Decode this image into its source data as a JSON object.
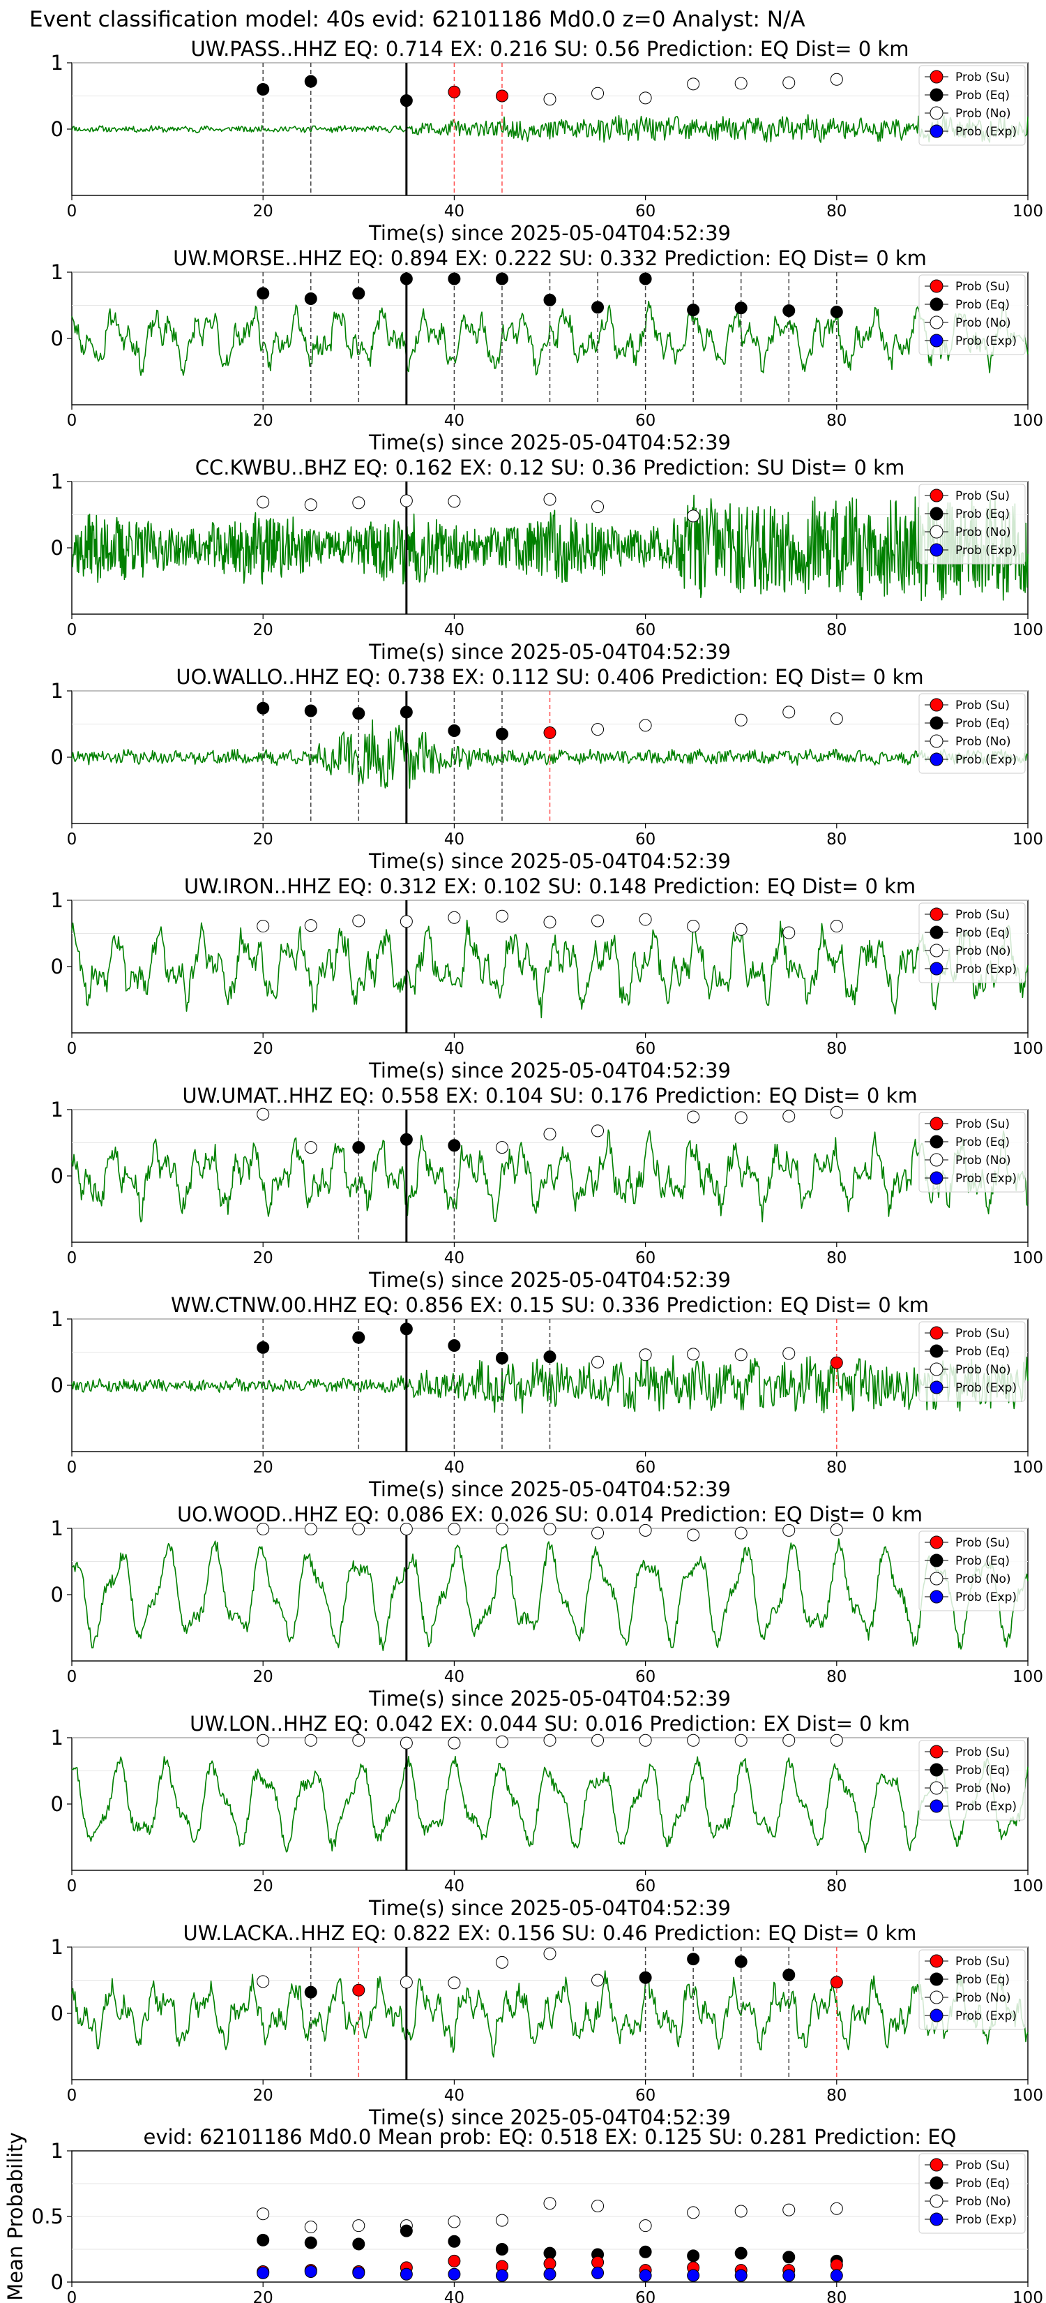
{
  "figure": {
    "suptitle": "Event classification model: 40s evid: 62101186 Md0.0 z=0 Analyst: N/A"
  },
  "legend_labels": [
    "Prob (Su)",
    "Prob (Eq)",
    "Prob (No)",
    "Prob (Exp)"
  ],
  "colors": {
    "waveform": "#008000",
    "su": "#ff0000",
    "eq": "#000000",
    "no": "#ffffff",
    "exp": "#0000ff",
    "origin_line": "#000000",
    "eq_marker_line": "#444444",
    "su_marker_line": "#ff5050"
  },
  "chart_data": [
    {
      "type": "line",
      "title": "UW.PASS..HHZ   EQ: 0.714   EX: 0.216   SU: 0.56    Prediction: EQ    Dist= 0 km",
      "xlabel": "Time(s) since 2025-05-04T04:52:39",
      "xlim": [
        0,
        100
      ],
      "ylim": [
        -1,
        1
      ],
      "x_ticks": [
        0,
        20,
        40,
        60,
        80,
        100
      ],
      "y_ticks": [
        0,
        1
      ],
      "waveform_style": "growing",
      "waveform_amp": 0.22,
      "waveform_seed": 11,
      "origin_time": 35,
      "probabilities": [
        {
          "x": 20,
          "y": 0.6,
          "class": "eq"
        },
        {
          "x": 25,
          "y": 0.72,
          "class": "eq"
        },
        {
          "x": 35,
          "y": 0.43,
          "class": "eq"
        },
        {
          "x": 40,
          "y": 0.56,
          "class": "su"
        },
        {
          "x": 45,
          "y": 0.5,
          "class": "su"
        },
        {
          "x": 50,
          "y": 0.45,
          "class": "no"
        },
        {
          "x": 55,
          "y": 0.54,
          "class": "no"
        },
        {
          "x": 60,
          "y": 0.47,
          "class": "no"
        },
        {
          "x": 65,
          "y": 0.68,
          "class": "no"
        },
        {
          "x": 70,
          "y": 0.69,
          "class": "no"
        },
        {
          "x": 75,
          "y": 0.7,
          "class": "no"
        },
        {
          "x": 80,
          "y": 0.75,
          "class": "no"
        }
      ]
    },
    {
      "type": "line",
      "title": "UW.MORSE..HHZ   EQ: 0.894   EX: 0.222   SU: 0.332    Prediction: EQ    Dist= 0 km",
      "xlabel": "Time(s) since 2025-05-04T04:52:39",
      "xlim": [
        0,
        100
      ],
      "ylim": [
        -1,
        1
      ],
      "x_ticks": [
        0,
        20,
        40,
        60,
        80,
        100
      ],
      "y_ticks": [
        0,
        1
      ],
      "waveform_style": "oscillating",
      "waveform_amp": 0.55,
      "waveform_seed": 23,
      "origin_time": 35,
      "probabilities": [
        {
          "x": 20,
          "y": 0.68,
          "class": "eq"
        },
        {
          "x": 25,
          "y": 0.6,
          "class": "eq"
        },
        {
          "x": 30,
          "y": 0.68,
          "class": "eq"
        },
        {
          "x": 35,
          "y": 0.9,
          "class": "eq"
        },
        {
          "x": 40,
          "y": 0.9,
          "class": "eq"
        },
        {
          "x": 45,
          "y": 0.9,
          "class": "eq"
        },
        {
          "x": 50,
          "y": 0.58,
          "class": "eq"
        },
        {
          "x": 55,
          "y": 0.47,
          "class": "eq"
        },
        {
          "x": 60,
          "y": 0.9,
          "class": "eq"
        },
        {
          "x": 65,
          "y": 0.43,
          "class": "eq"
        },
        {
          "x": 70,
          "y": 0.46,
          "class": "eq"
        },
        {
          "x": 75,
          "y": 0.42,
          "class": "eq"
        },
        {
          "x": 80,
          "y": 0.4,
          "class": "eq"
        }
      ]
    },
    {
      "type": "line",
      "title": "CC.KWBU..BHZ   EQ: 0.162   EX: 0.12   SU: 0.36    Prediction: SU    Dist= 0 km",
      "xlabel": "Time(s) since 2025-05-04T04:52:39",
      "xlim": [
        0,
        100
      ],
      "ylim": [
        -1,
        1
      ],
      "x_ticks": [
        0,
        20,
        40,
        60,
        80,
        100
      ],
      "y_ticks": [
        0,
        1
      ],
      "waveform_style": "dense",
      "waveform_amp": 0.6,
      "waveform_seed": 37,
      "origin_time": 35,
      "probabilities": [
        {
          "x": 20,
          "y": 0.69,
          "class": "no"
        },
        {
          "x": 25,
          "y": 0.65,
          "class": "no"
        },
        {
          "x": 30,
          "y": 0.68,
          "class": "no"
        },
        {
          "x": 35,
          "y": 0.71,
          "class": "no"
        },
        {
          "x": 40,
          "y": 0.7,
          "class": "no"
        },
        {
          "x": 50,
          "y": 0.73,
          "class": "no"
        },
        {
          "x": 55,
          "y": 0.62,
          "class": "no"
        },
        {
          "x": 65,
          "y": 0.48,
          "class": "no"
        }
      ]
    },
    {
      "type": "line",
      "title": "UO.WALLO..HHZ   EQ: 0.738   EX: 0.112   SU: 0.406    Prediction: EQ    Dist= 0 km",
      "xlabel": "Time(s) since 2025-05-04T04:52:39",
      "xlim": [
        0,
        100
      ],
      "ylim": [
        -1,
        1
      ],
      "x_ticks": [
        0,
        20,
        40,
        60,
        80,
        100
      ],
      "y_ticks": [
        0,
        1
      ],
      "waveform_style": "burst",
      "waveform_amp": 0.35,
      "waveform_seed": 41,
      "origin_time": 35,
      "probabilities": [
        {
          "x": 20,
          "y": 0.74,
          "class": "eq"
        },
        {
          "x": 25,
          "y": 0.7,
          "class": "eq"
        },
        {
          "x": 30,
          "y": 0.66,
          "class": "eq"
        },
        {
          "x": 35,
          "y": 0.68,
          "class": "eq"
        },
        {
          "x": 40,
          "y": 0.4,
          "class": "eq"
        },
        {
          "x": 45,
          "y": 0.35,
          "class": "eq"
        },
        {
          "x": 50,
          "y": 0.37,
          "class": "su"
        },
        {
          "x": 55,
          "y": 0.42,
          "class": "no"
        },
        {
          "x": 60,
          "y": 0.48,
          "class": "no"
        },
        {
          "x": 70,
          "y": 0.56,
          "class": "no"
        },
        {
          "x": 75,
          "y": 0.68,
          "class": "no"
        },
        {
          "x": 80,
          "y": 0.58,
          "class": "no"
        }
      ]
    },
    {
      "type": "line",
      "title": "UW.IRON..HHZ   EQ: 0.312   EX: 0.102   SU: 0.148    Prediction: EQ    Dist= 0 km",
      "xlabel": "Time(s) since 2025-05-04T04:52:39",
      "xlim": [
        0,
        100
      ],
      "ylim": [
        -1,
        1
      ],
      "x_ticks": [
        0,
        20,
        40,
        60,
        80,
        100
      ],
      "y_ticks": [
        0,
        1
      ],
      "waveform_style": "oscillating",
      "waveform_amp": 0.7,
      "waveform_seed": 53,
      "origin_time": 35,
      "probabilities": [
        {
          "x": 20,
          "y": 0.61,
          "class": "no"
        },
        {
          "x": 25,
          "y": 0.62,
          "class": "no"
        },
        {
          "x": 30,
          "y": 0.69,
          "class": "no"
        },
        {
          "x": 35,
          "y": 0.68,
          "class": "no"
        },
        {
          "x": 40,
          "y": 0.74,
          "class": "no"
        },
        {
          "x": 45,
          "y": 0.76,
          "class": "no"
        },
        {
          "x": 50,
          "y": 0.67,
          "class": "no"
        },
        {
          "x": 55,
          "y": 0.69,
          "class": "no"
        },
        {
          "x": 60,
          "y": 0.71,
          "class": "no"
        },
        {
          "x": 65,
          "y": 0.61,
          "class": "no"
        },
        {
          "x": 70,
          "y": 0.56,
          "class": "no"
        },
        {
          "x": 75,
          "y": 0.51,
          "class": "no"
        },
        {
          "x": 80,
          "y": 0.61,
          "class": "no"
        }
      ]
    },
    {
      "type": "line",
      "title": "UW.UMAT..HHZ   EQ: 0.558   EX: 0.104   SU: 0.176    Prediction: EQ    Dist= 0 km",
      "xlabel": "Time(s) since 2025-05-04T04:52:39",
      "xlim": [
        0,
        100
      ],
      "ylim": [
        -1,
        1
      ],
      "x_ticks": [
        0,
        20,
        40,
        60,
        80,
        100
      ],
      "y_ticks": [
        0,
        1
      ],
      "waveform_style": "oscillating",
      "waveform_amp": 0.65,
      "waveform_seed": 67,
      "origin_time": 35,
      "probabilities": [
        {
          "x": 20,
          "y": 0.93,
          "class": "no"
        },
        {
          "x": 25,
          "y": 0.43,
          "class": "no"
        },
        {
          "x": 30,
          "y": 0.43,
          "class": "eq"
        },
        {
          "x": 35,
          "y": 0.55,
          "class": "eq"
        },
        {
          "x": 40,
          "y": 0.46,
          "class": "eq"
        },
        {
          "x": 45,
          "y": 0.43,
          "class": "no"
        },
        {
          "x": 50,
          "y": 0.63,
          "class": "no"
        },
        {
          "x": 55,
          "y": 0.68,
          "class": "no"
        },
        {
          "x": 65,
          "y": 0.89,
          "class": "no"
        },
        {
          "x": 70,
          "y": 0.88,
          "class": "no"
        },
        {
          "x": 75,
          "y": 0.9,
          "class": "no"
        },
        {
          "x": 80,
          "y": 0.96,
          "class": "no"
        }
      ]
    },
    {
      "type": "line",
      "title": "WW.CTNW.00.HHZ   EQ: 0.856   EX: 0.15   SU: 0.336    Prediction: EQ    Dist= 0 km",
      "xlabel": "Time(s) since 2025-05-04T04:52:39",
      "xlim": [
        0,
        100
      ],
      "ylim": [
        -1,
        1
      ],
      "x_ticks": [
        0,
        20,
        40,
        60,
        80,
        100
      ],
      "y_ticks": [
        0,
        1
      ],
      "waveform_style": "growing",
      "waveform_amp": 0.45,
      "waveform_seed": 79,
      "origin_time": 35,
      "probabilities": [
        {
          "x": 20,
          "y": 0.57,
          "class": "eq"
        },
        {
          "x": 30,
          "y": 0.72,
          "class": "eq"
        },
        {
          "x": 35,
          "y": 0.85,
          "class": "eq"
        },
        {
          "x": 40,
          "y": 0.6,
          "class": "eq"
        },
        {
          "x": 45,
          "y": 0.41,
          "class": "eq"
        },
        {
          "x": 50,
          "y": 0.43,
          "class": "eq"
        },
        {
          "x": 55,
          "y": 0.35,
          "class": "no"
        },
        {
          "x": 60,
          "y": 0.46,
          "class": "no"
        },
        {
          "x": 65,
          "y": 0.47,
          "class": "no"
        },
        {
          "x": 70,
          "y": 0.46,
          "class": "no"
        },
        {
          "x": 75,
          "y": 0.48,
          "class": "no"
        },
        {
          "x": 80,
          "y": 0.34,
          "class": "su"
        }
      ]
    },
    {
      "type": "line",
      "title": "UO.WOOD..HHZ   EQ: 0.086   EX: 0.026   SU: 0.014    Prediction: EQ    Dist= 0 km",
      "xlabel": "Time(s) since 2025-05-04T04:52:39",
      "xlim": [
        0,
        100
      ],
      "ylim": [
        -1,
        1
      ],
      "x_ticks": [
        0,
        20,
        40,
        60,
        80,
        100
      ],
      "y_ticks": [
        0,
        1
      ],
      "waveform_style": "smooth",
      "waveform_amp": 0.8,
      "waveform_seed": 83,
      "origin_time": 35,
      "probabilities": [
        {
          "x": 20,
          "y": 0.99,
          "class": "no"
        },
        {
          "x": 25,
          "y": 0.99,
          "class": "no"
        },
        {
          "x": 30,
          "y": 0.99,
          "class": "no"
        },
        {
          "x": 35,
          "y": 0.99,
          "class": "no"
        },
        {
          "x": 40,
          "y": 0.99,
          "class": "no"
        },
        {
          "x": 45,
          "y": 0.99,
          "class": "no"
        },
        {
          "x": 50,
          "y": 0.99,
          "class": "no"
        },
        {
          "x": 55,
          "y": 0.93,
          "class": "no"
        },
        {
          "x": 60,
          "y": 0.97,
          "class": "no"
        },
        {
          "x": 65,
          "y": 0.9,
          "class": "no"
        },
        {
          "x": 70,
          "y": 0.93,
          "class": "no"
        },
        {
          "x": 75,
          "y": 0.97,
          "class": "no"
        },
        {
          "x": 80,
          "y": 0.98,
          "class": "no"
        }
      ]
    },
    {
      "type": "line",
      "title": "UW.LON..HHZ   EQ: 0.042   EX: 0.044   SU: 0.016    Prediction: EX    Dist= 0 km",
      "xlabel": "Time(s) since 2025-05-04T04:52:39",
      "xlim": [
        0,
        100
      ],
      "ylim": [
        -1,
        1
      ],
      "x_ticks": [
        0,
        20,
        40,
        60,
        80,
        100
      ],
      "y_ticks": [
        0,
        1
      ],
      "waveform_style": "smooth",
      "waveform_amp": 0.7,
      "waveform_seed": 97,
      "origin_time": 35,
      "probabilities": [
        {
          "x": 20,
          "y": 0.96,
          "class": "no"
        },
        {
          "x": 25,
          "y": 0.96,
          "class": "no"
        },
        {
          "x": 30,
          "y": 0.96,
          "class": "no"
        },
        {
          "x": 35,
          "y": 0.92,
          "class": "no"
        },
        {
          "x": 40,
          "y": 0.92,
          "class": "no"
        },
        {
          "x": 45,
          "y": 0.94,
          "class": "no"
        },
        {
          "x": 50,
          "y": 0.96,
          "class": "no"
        },
        {
          "x": 55,
          "y": 0.96,
          "class": "no"
        },
        {
          "x": 60,
          "y": 0.96,
          "class": "no"
        },
        {
          "x": 65,
          "y": 0.96,
          "class": "no"
        },
        {
          "x": 70,
          "y": 0.96,
          "class": "no"
        },
        {
          "x": 75,
          "y": 0.96,
          "class": "no"
        },
        {
          "x": 80,
          "y": 0.96,
          "class": "no"
        }
      ]
    },
    {
      "type": "line",
      "title": "UW.LACKA..HHZ   EQ: 0.822   EX: 0.156   SU: 0.46    Prediction: EQ    Dist= 0 km",
      "xlabel": "Time(s) since 2025-05-04T04:52:39",
      "xlim": [
        0,
        100
      ],
      "ylim": [
        -1,
        1
      ],
      "x_ticks": [
        0,
        20,
        40,
        60,
        80,
        100
      ],
      "y_ticks": [
        0,
        1
      ],
      "waveform_style": "oscillating",
      "waveform_amp": 0.6,
      "waveform_seed": 101,
      "origin_time": 35,
      "probabilities": [
        {
          "x": 20,
          "y": 0.48,
          "class": "no"
        },
        {
          "x": 25,
          "y": 0.32,
          "class": "eq"
        },
        {
          "x": 30,
          "y": 0.35,
          "class": "su"
        },
        {
          "x": 35,
          "y": 0.47,
          "class": "no"
        },
        {
          "x": 40,
          "y": 0.46,
          "class": "no"
        },
        {
          "x": 45,
          "y": 0.77,
          "class": "no"
        },
        {
          "x": 50,
          "y": 0.9,
          "class": "no"
        },
        {
          "x": 55,
          "y": 0.5,
          "class": "no"
        },
        {
          "x": 60,
          "y": 0.54,
          "class": "eq"
        },
        {
          "x": 65,
          "y": 0.82,
          "class": "eq"
        },
        {
          "x": 70,
          "y": 0.78,
          "class": "eq"
        },
        {
          "x": 75,
          "y": 0.58,
          "class": "eq"
        },
        {
          "x": 80,
          "y": 0.47,
          "class": "su"
        }
      ]
    },
    {
      "type": "scatter",
      "title": "evid: 62101186  Md0.0   Mean prob:   EQ: 0.518  EX: 0.125  SU: 0.281   Prediction: EQ",
      "ylabel": "Mean Probability",
      "xlim": [
        0,
        100
      ],
      "ylim": [
        0,
        1
      ],
      "x_ticks": [
        0,
        20,
        40,
        60,
        80,
        100
      ],
      "y_ticks": [
        0,
        0.5,
        1
      ],
      "x": [
        20,
        25,
        30,
        35,
        40,
        45,
        50,
        55,
        60,
        65,
        70,
        75,
        80
      ],
      "series": [
        {
          "class": "no",
          "values": [
            0.52,
            0.42,
            0.43,
            0.43,
            0.46,
            0.47,
            0.6,
            0.58,
            0.43,
            0.53,
            0.54,
            0.55,
            0.56
          ]
        },
        {
          "class": "eq",
          "values": [
            0.32,
            0.3,
            0.29,
            0.39,
            0.31,
            0.25,
            0.22,
            0.21,
            0.23,
            0.2,
            0.22,
            0.19,
            0.16
          ]
        },
        {
          "class": "su",
          "values": [
            0.08,
            0.09,
            0.08,
            0.11,
            0.16,
            0.12,
            0.14,
            0.15,
            0.09,
            0.11,
            0.09,
            0.09,
            0.13
          ]
        },
        {
          "class": "exp",
          "values": [
            0.07,
            0.08,
            0.07,
            0.06,
            0.06,
            0.05,
            0.06,
            0.07,
            0.05,
            0.05,
            0.05,
            0.05,
            0.05
          ]
        }
      ]
    }
  ]
}
